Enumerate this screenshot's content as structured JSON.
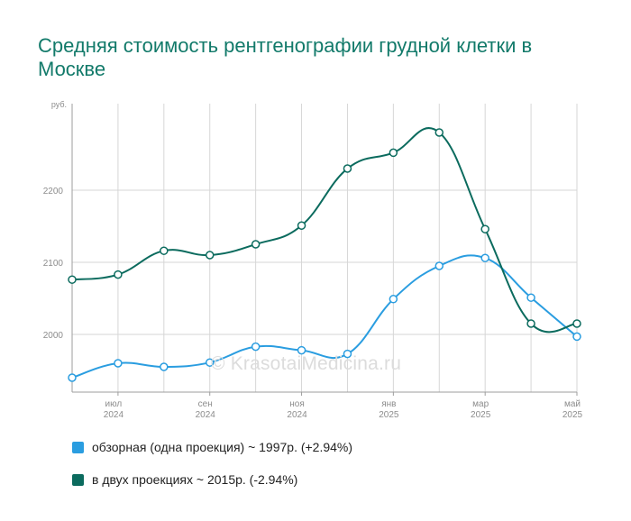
{
  "page": {
    "title": "Средняя стоимость рентгенографии грудной клетки в Москве"
  },
  "watermark": "© KrasotaiMedicina.ru",
  "colors": {
    "series1": "#2a9de0",
    "series2": "#0b6b5e",
    "grid": "#d6d6d6",
    "axis": "#9e9e9e",
    "tick_text": "#8c8c8c"
  },
  "legend": [
    {
      "label": "обзорная (одна проекция) ~ 1997р. (+2.94%)",
      "color": "#2a9de0"
    },
    {
      "label": "в двух проекциях ~ 2015р. (-2.94%)",
      "color": "#0b6b5e"
    }
  ],
  "chart_data": {
    "type": "line",
    "title": "Средняя стоимость рентгенографии грудной клетки в Москве",
    "ylabel": "руб.",
    "ylim": [
      1920,
      2320
    ],
    "yticks": [
      2000,
      2100,
      2200
    ],
    "x": [
      "2024-06",
      "2024-07",
      "2024-08",
      "2024-09",
      "2024-10",
      "2024-11",
      "2024-12",
      "2025-01",
      "2025-02",
      "2025-03",
      "2025-04",
      "2025-05"
    ],
    "xtick_labels": [
      {
        "index": 1,
        "month": "июл",
        "year": "2024"
      },
      {
        "index": 3,
        "month": "сен",
        "year": "2024"
      },
      {
        "index": 5,
        "month": "ноя",
        "year": "2024"
      },
      {
        "index": 7,
        "month": "янв",
        "year": "2025"
      },
      {
        "index": 9,
        "month": "мар",
        "year": "2025"
      },
      {
        "index": 11,
        "month": "май",
        "year": "2025"
      }
    ],
    "grid": true,
    "legend_position": "bottom-left",
    "series": [
      {
        "name": "обзорная (одна проекция) ~ 1997р. (+2.94%)",
        "color": "#2a9de0",
        "values": [
          1940,
          1960,
          1955,
          1961,
          1983,
          1978,
          1973,
          2049,
          2095,
          2106,
          2051,
          1997
        ]
      },
      {
        "name": "в двух проекциях ~ 2015р. (-2.94%)",
        "color": "#0b6b5e",
        "values": [
          2076,
          2083,
          2116,
          2110,
          2125,
          2151,
          2230,
          2252,
          2280,
          2146,
          2015,
          2015
        ]
      }
    ]
  }
}
